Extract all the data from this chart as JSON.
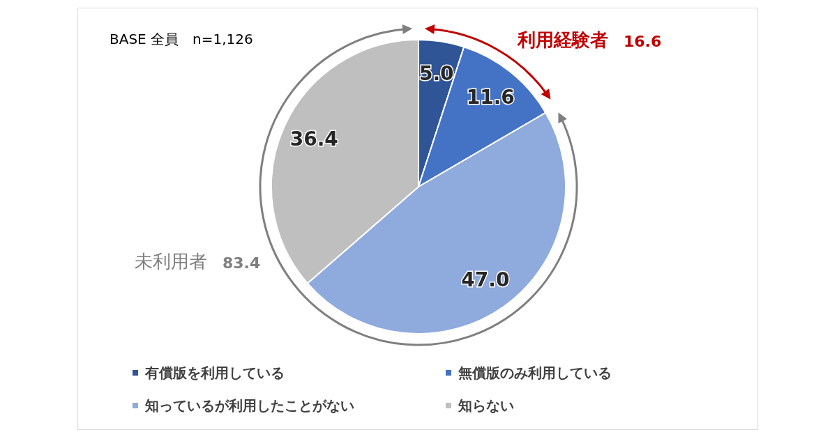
{
  "chart_data": {
    "type": "pie",
    "categories": [
      "有償版を利用している",
      "無償版のみ利用している",
      "知っているが利用したことがない",
      "知らない"
    ],
    "values": [
      5.0,
      11.6,
      47.0,
      36.4
    ],
    "colors": [
      "#2f5597",
      "#4472c4",
      "#8faadc",
      "#bfbfbf"
    ],
    "value_labels": [
      "5.0",
      "11.6",
      "47.0",
      "36.4"
    ],
    "legend": "bottom",
    "annotations": [
      "BASE 全員　n=1,126",
      "利用経験者　16.6",
      "未利用者　83.4"
    ]
  }
}
